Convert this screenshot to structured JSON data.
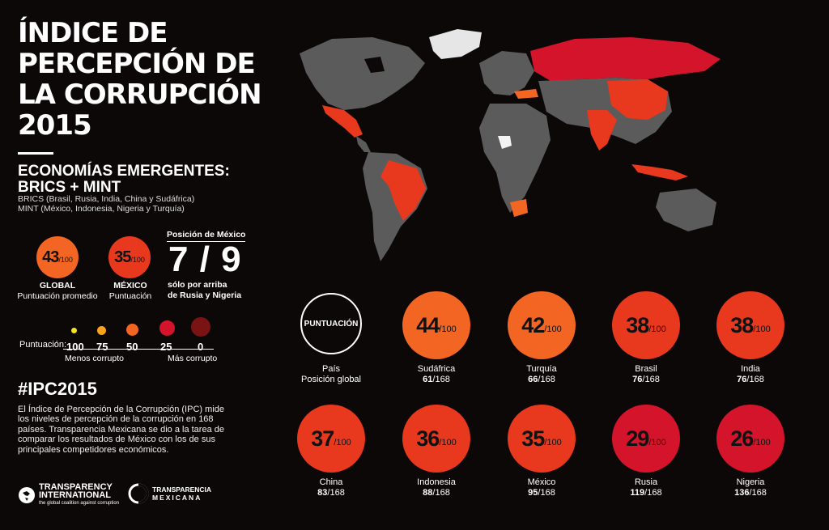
{
  "title_lines": [
    "ÍNDICE DE",
    "PERCEPCIÓN DE",
    "LA CORRUPCIÓN",
    "2015"
  ],
  "subtitle_lines": [
    "ECONOMÍAS EMERGENTES:",
    "BRICS + MINT"
  ],
  "brics_line": "BRICS (Brasil, Rusia, India, China y Sudáfrica)",
  "mint_line": "MINT (México, Indonesia, Nigeria y Turquía)",
  "global": {
    "score": "43",
    "den": "/100",
    "label": "GLOBAL",
    "sub": "Puntuación promedio",
    "color": "#f26522"
  },
  "mexico": {
    "score": "35",
    "den": "/100",
    "label": "MÉXICO",
    "sub": "Puntuación",
    "color": "#e8381e"
  },
  "position": {
    "heading": "Posición de México",
    "value": "7 / 9",
    "note1": "sólo por arriba",
    "note2": "de Rusia y Nigeria"
  },
  "scale": {
    "label": "Puntuación:",
    "values": [
      "100",
      "75",
      "50",
      "25",
      "0"
    ],
    "less": "Menos corrupto",
    "more": "Más corrupto",
    "colors": [
      "#f7e21b",
      "#f9a21b",
      "#f26522",
      "#d4142a",
      "#7a1414"
    ]
  },
  "hashtag": "#IPC2015",
  "description": "El Índice de Percepción de la Corrupción (IPC) mide los niveles de percepción de la corrupción en 168 países. Transparencia Mexicana se dio a la tarea de comparar los resultados de México con los de sus principales competidores económicos.",
  "logos": {
    "ti_name": "TRANSPARENCY",
    "ti_name2": "INTERNATIONAL",
    "ti_tag": "the global coalition against corruption",
    "tm_name": "TRANSPARENCIA",
    "tm_name2": "MEXICANA"
  },
  "legend_card": {
    "label": "PUNTUACIÓN",
    "line1": "País",
    "line2": "Posición global"
  },
  "countries": [
    {
      "name": "Sudáfrica",
      "score": "44",
      "den": "/100",
      "rank": "61",
      "of": "/168",
      "color": "#f26522"
    },
    {
      "name": "Turquía",
      "score": "42",
      "den": "/100",
      "rank": "66",
      "of": "/168",
      "color": "#f26522"
    },
    {
      "name": "Brasil",
      "score": "38",
      "den": "/100",
      "rank": "76",
      "of": "/168",
      "color": "#e8381e"
    },
    {
      "name": "India",
      "score": "38",
      "den": "/100",
      "rank": "76",
      "of": "/168",
      "color": "#e8381e"
    },
    {
      "name": "China",
      "score": "37",
      "den": "/100",
      "rank": "83",
      "of": "/168",
      "color": "#e8381e"
    },
    {
      "name": "Indonesia",
      "score": "36",
      "den": "/100",
      "rank": "88",
      "of": "/168",
      "color": "#e8381e"
    },
    {
      "name": "México",
      "score": "35",
      "den": "/100",
      "rank": "95",
      "of": "/168",
      "color": "#e8381e"
    },
    {
      "name": "Rusia",
      "score": "29",
      "den": "/100",
      "rank": "119",
      "of": "/168",
      "color": "#d4142a"
    },
    {
      "name": "Nigeria",
      "score": "26",
      "den": "/100",
      "rank": "136",
      "of": "/168",
      "color": "#d4142a"
    }
  ],
  "map_colors": {
    "land": "#5b5b5b",
    "greenland": "#e6e6e6",
    "highlight_red": "#e8381e",
    "highlight_dark": "#d4142a",
    "highlight_orange": "#f26522",
    "nigeria": "#f3f3f3"
  }
}
